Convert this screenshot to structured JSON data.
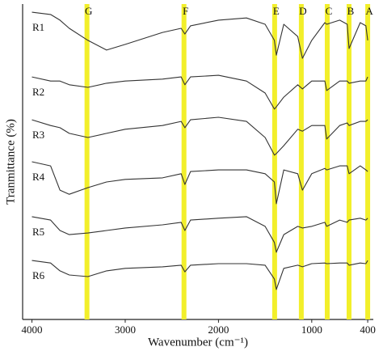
{
  "chart_data": {
    "type": "line",
    "xlabel": "Wavenumber (cm⁻¹)",
    "ylabel": "Tranmittance (%)",
    "xlim": [
      4100,
      340
    ],
    "ylim": [
      0,
      100
    ],
    "xticks": [
      4000,
      3000,
      2000,
      1000,
      400
    ],
    "line_color": "#333333",
    "band_color": "#f2ef2a",
    "bands": [
      {
        "label": "G",
        "x": 3410
      },
      {
        "label": "F",
        "x": 2370
      },
      {
        "label": "E",
        "x": 1398
      },
      {
        "label": "D",
        "x": 1112
      },
      {
        "label": "C",
        "x": 834
      },
      {
        "label": "B",
        "x": 600
      },
      {
        "label": "A",
        "x": 400
      }
    ],
    "x": [
      4000,
      3800,
      3700,
      3600,
      3400,
      3200,
      3000,
      2600,
      2400,
      2360,
      2300,
      2000,
      1700,
      1500,
      1400,
      1380,
      1300,
      1150,
      1100,
      1000,
      860,
      840,
      700,
      620,
      600,
      480,
      420,
      400
    ],
    "series": [
      {
        "name": "R1",
        "values": [
          97.4,
          96.7,
          94.9,
          92.3,
          88.5,
          85.4,
          87.2,
          91.0,
          92.3,
          90.5,
          93.1,
          94.9,
          95.6,
          93.6,
          88.5,
          83.8,
          93.6,
          89.7,
          82.8,
          88.5,
          94.1,
          93.6,
          94.9,
          93.6,
          85.9,
          94.1,
          93.1,
          88.5
        ]
      },
      {
        "name": "R2",
        "values": [
          76.9,
          75.6,
          75.6,
          74.4,
          73.6,
          74.9,
          75.6,
          76.2,
          76.9,
          74.4,
          76.9,
          77.4,
          75.6,
          71.8,
          66.7,
          67.4,
          70.5,
          74.4,
          73.1,
          75.6,
          75.6,
          72.6,
          75.6,
          75.6,
          74.9,
          75.6,
          75.6,
          76.9
        ]
      },
      {
        "name": "R3",
        "values": [
          63.3,
          61.5,
          60.8,
          59.0,
          57.7,
          59.0,
          60.3,
          61.5,
          62.8,
          60.8,
          63.3,
          64.1,
          62.8,
          57.7,
          52.1,
          52.6,
          55.1,
          60.3,
          59.7,
          61.5,
          61.5,
          57.2,
          61.5,
          62.3,
          61.5,
          62.8,
          62.8,
          63.3
        ]
      },
      {
        "name": "R4",
        "values": [
          50.0,
          48.7,
          41.0,
          39.7,
          41.8,
          43.6,
          44.4,
          44.9,
          46.2,
          42.8,
          46.9,
          47.4,
          47.4,
          46.2,
          43.6,
          36.7,
          47.4,
          46.2,
          41.0,
          46.2,
          47.9,
          47.4,
          48.7,
          48.7,
          46.2,
          48.7,
          47.4,
          46.9
        ]
      },
      {
        "name": "R5",
        "values": [
          32.6,
          31.5,
          28.2,
          26.9,
          27.4,
          28.2,
          29.0,
          30.0,
          30.8,
          28.2,
          31.5,
          32.1,
          32.6,
          29.5,
          24.4,
          21.3,
          26.9,
          29.5,
          29.0,
          29.5,
          30.8,
          29.5,
          31.5,
          30.8,
          31.5,
          32.1,
          31.5,
          32.1
        ]
      },
      {
        "name": "R6",
        "values": [
          18.7,
          17.9,
          15.4,
          14.1,
          13.6,
          15.4,
          16.2,
          16.7,
          17.2,
          15.1,
          17.2,
          17.7,
          17.7,
          17.2,
          12.8,
          9.5,
          16.2,
          17.2,
          16.7,
          17.7,
          17.9,
          17.7,
          17.9,
          17.9,
          17.2,
          17.9,
          17.7,
          18.7
        ]
      }
    ]
  }
}
